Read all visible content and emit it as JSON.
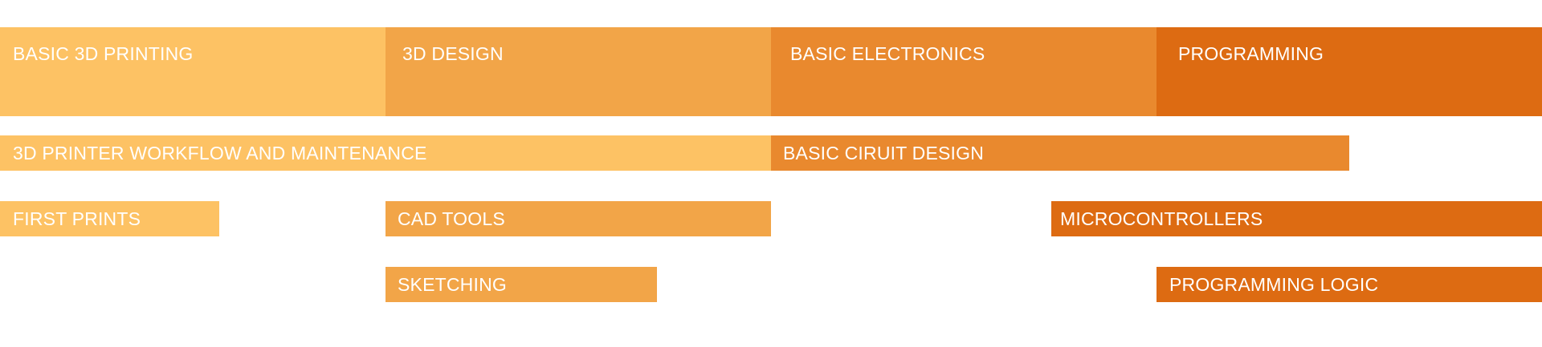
{
  "colors": {
    "stage1": "#fdc264",
    "stage2": "#f2a548",
    "stage3": "#e9892e",
    "stage4": "#dd6b12"
  },
  "headers": [
    {
      "label": "BASIC 3D PRINTING"
    },
    {
      "label": "3D DESIGN"
    },
    {
      "label": "BASIC ELECTRONICS"
    },
    {
      "label": "PROGRAMMING"
    }
  ],
  "topics": [
    {
      "label": "3D PRINTER WORKFLOW AND MAINTENANCE"
    },
    {
      "label": "BASIC CIRUIT DESIGN"
    },
    {
      "label": "FIRST PRINTS"
    },
    {
      "label": "CAD TOOLS"
    },
    {
      "label": "MICROCONTROLLERS"
    },
    {
      "label": "SKETCHING"
    },
    {
      "label": "PROGRAMMING LOGIC"
    }
  ]
}
